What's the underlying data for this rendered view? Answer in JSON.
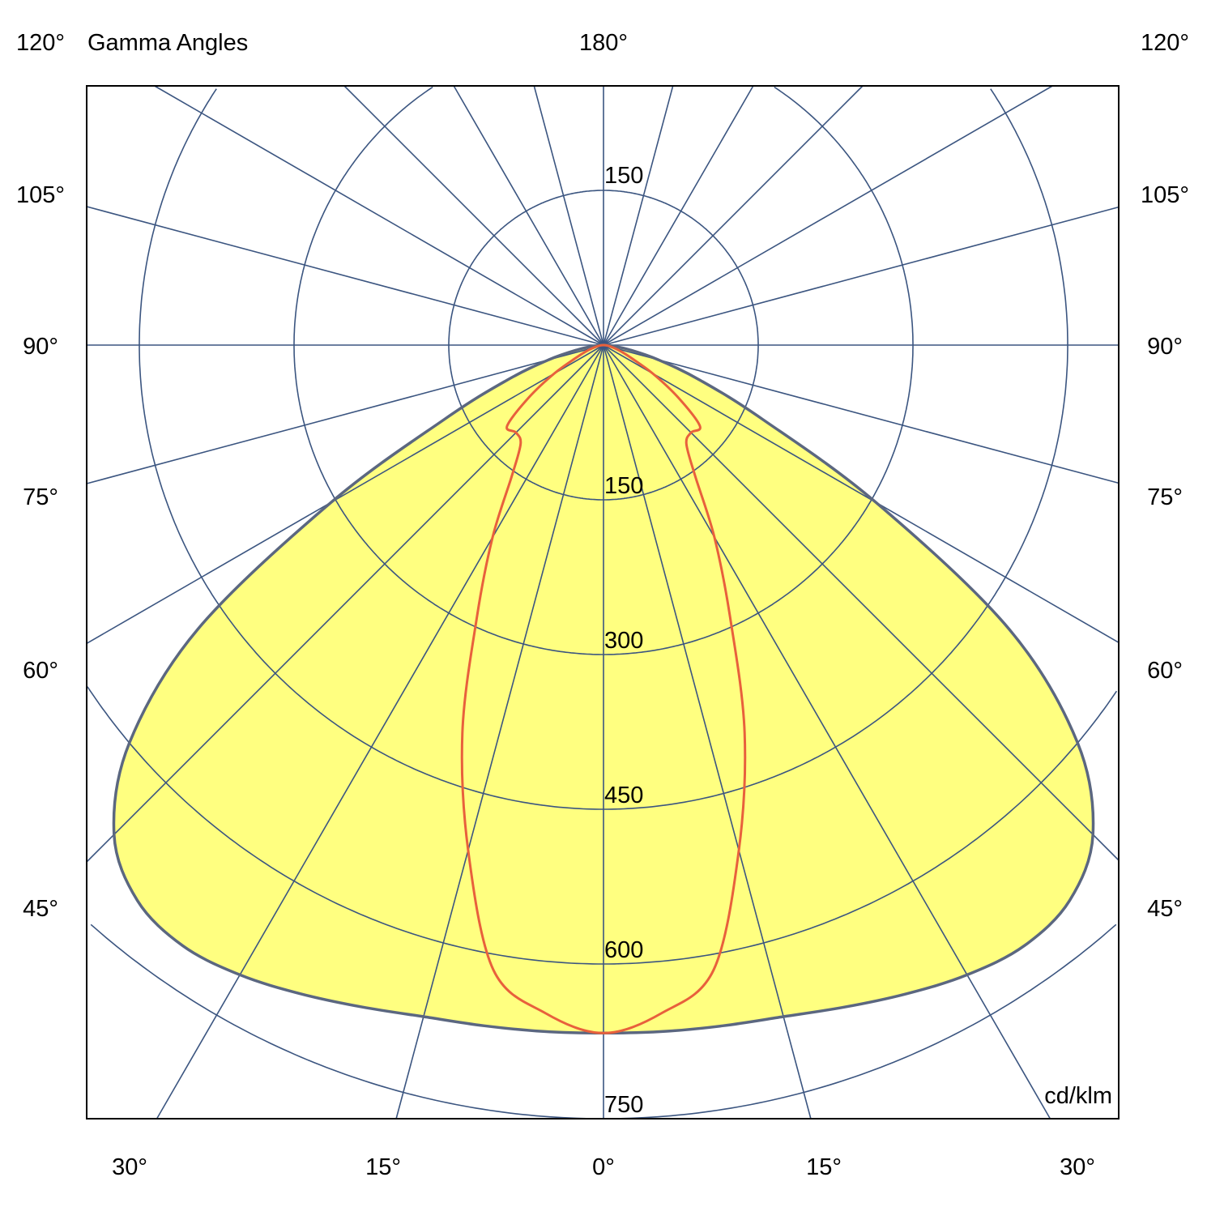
{
  "chart_data": {
    "type": "polar",
    "title": "Gamma Angles",
    "unit": "cd/klm",
    "radial_ticks": [
      150,
      300,
      450,
      600,
      750
    ],
    "radial_max": 750,
    "angle_step_deg": 15,
    "frame_labels": {
      "top": [
        "180°"
      ],
      "left": [
        "120°",
        "105°",
        "90°",
        "75°",
        "60°",
        "45°"
      ],
      "right": [
        "120°",
        "105°",
        "90°",
        "75°",
        "60°",
        "45°"
      ],
      "bottom": [
        "30°",
        "15°",
        "0°",
        "15°",
        "30°"
      ]
    },
    "gamma_deg": [
      0,
      5,
      10,
      15,
      20,
      25,
      30,
      35,
      40,
      45,
      50,
      55,
      60,
      65,
      70,
      75,
      80,
      85,
      90
    ],
    "series": [
      {
        "fill": "#ffff80",
        "stroke": "#5b6780",
        "values": [
          667,
          668,
          670,
          674,
          683,
          694,
          705,
          711,
          703,
          671,
          600,
          480,
          305,
          170,
          100,
          55,
          25,
          8,
          0
        ]
      },
      {
        "fill": "none",
        "stroke": "#e8603c",
        "values": [
          667,
          650,
          615,
          507,
          400,
          290,
          215,
          155,
          125,
          120,
          122,
          88,
          55,
          30,
          18,
          10,
          5,
          2,
          0
        ]
      }
    ],
    "grid": true,
    "grid_color": "#3b5580"
  }
}
